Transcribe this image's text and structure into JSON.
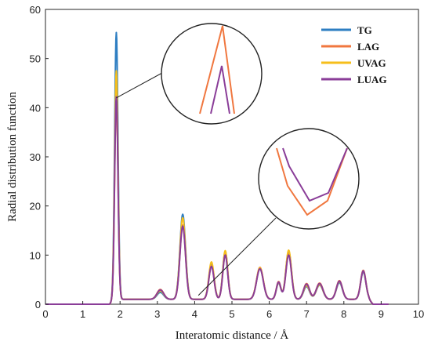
{
  "chart_data": {
    "type": "line",
    "xlabel": "Interatomic distance / Å",
    "ylabel": "Radial distribution function",
    "xlim": [
      0,
      10
    ],
    "ylim": [
      0,
      60
    ],
    "xticks": [
      "0",
      "1",
      "2",
      "3",
      "4",
      "5",
      "6",
      "7",
      "8",
      "9",
      "10"
    ],
    "yticks": [
      "0",
      "10",
      "20",
      "30",
      "40",
      "50",
      "60"
    ],
    "grid": false,
    "legend_position": "top-right",
    "series": [
      {
        "name": "TG",
        "color": "#2e7ec2",
        "peaks": [
          {
            "x": 1.9,
            "y": 55.3
          },
          {
            "x": 3.08,
            "y": 2.4
          },
          {
            "x": 3.68,
            "y": 18.3
          },
          {
            "x": 4.45,
            "y": 8.2
          },
          {
            "x": 4.82,
            "y": 10.8
          },
          {
            "x": 5.75,
            "y": 7.3
          },
          {
            "x": 6.25,
            "y": 4.3
          },
          {
            "x": 6.52,
            "y": 10.8
          },
          {
            "x": 7.0,
            "y": 3.6
          },
          {
            "x": 7.35,
            "y": 3.9
          },
          {
            "x": 7.88,
            "y": 4.4
          },
          {
            "x": 8.52,
            "y": 6.6
          }
        ]
      },
      {
        "name": "LAG",
        "color": "#f0773f",
        "peaks": [
          {
            "x": 1.9,
            "y": 42.0
          },
          {
            "x": 3.08,
            "y": 3.0
          },
          {
            "x": 3.68,
            "y": 16.1
          },
          {
            "x": 4.45,
            "y": 7.8
          },
          {
            "x": 4.82,
            "y": 10.2
          },
          {
            "x": 5.75,
            "y": 7.5
          },
          {
            "x": 6.25,
            "y": 4.6
          },
          {
            "x": 6.52,
            "y": 10.2
          },
          {
            "x": 7.0,
            "y": 4.2
          },
          {
            "x": 7.35,
            "y": 4.3
          },
          {
            "x": 7.88,
            "y": 4.8
          },
          {
            "x": 8.52,
            "y": 6.9
          }
        ]
      },
      {
        "name": "UVAG",
        "color": "#f6be1b",
        "peaks": [
          {
            "x": 1.9,
            "y": 47.5
          },
          {
            "x": 3.08,
            "y": 2.7
          },
          {
            "x": 3.68,
            "y": 17.6
          },
          {
            "x": 4.45,
            "y": 8.6
          },
          {
            "x": 4.82,
            "y": 10.9
          },
          {
            "x": 5.75,
            "y": 7.4
          },
          {
            "x": 6.25,
            "y": 4.4
          },
          {
            "x": 6.52,
            "y": 11.0
          },
          {
            "x": 7.0,
            "y": 3.8
          },
          {
            "x": 7.35,
            "y": 4.0
          },
          {
            "x": 7.88,
            "y": 4.6
          },
          {
            "x": 8.52,
            "y": 6.8
          }
        ]
      },
      {
        "name": "LUAG",
        "color": "#8a3d98",
        "peaks": [
          {
            "x": 1.9,
            "y": 42.2
          },
          {
            "x": 3.08,
            "y": 2.9
          },
          {
            "x": 3.68,
            "y": 15.9
          },
          {
            "x": 4.45,
            "y": 7.7
          },
          {
            "x": 4.82,
            "y": 10.0
          },
          {
            "x": 5.75,
            "y": 7.2
          },
          {
            "x": 6.25,
            "y": 4.5
          },
          {
            "x": 6.52,
            "y": 10.0
          },
          {
            "x": 7.0,
            "y": 4.1
          },
          {
            "x": 7.35,
            "y": 4.2
          },
          {
            "x": 7.88,
            "y": 4.7
          },
          {
            "x": 8.52,
            "y": 6.8
          }
        ]
      }
    ],
    "insets": [
      {
        "name": "main-peak-zoom",
        "target": {
          "x": 1.9,
          "y": 42
        },
        "series": [
          "LAG",
          "LUAG"
        ]
      },
      {
        "name": "valley-zoom",
        "target": {
          "x": 4.1,
          "y": 1.8
        },
        "series": [
          "LAG",
          "LUAG"
        ]
      }
    ]
  }
}
